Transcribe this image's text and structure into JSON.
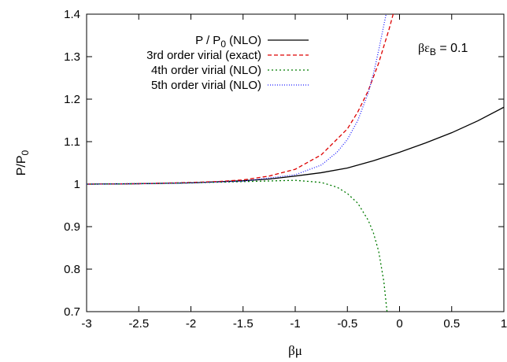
{
  "chart_data": {
    "type": "line",
    "xlabel": "βμ",
    "ylabel": {
      "main": "P/P",
      "sub": "0"
    },
    "xlim": [
      -3,
      1
    ],
    "ylim": [
      0.7,
      1.4
    ],
    "xticks": [
      -3,
      -2.5,
      -2,
      -1.5,
      -1,
      -0.5,
      0,
      0.5,
      1
    ],
    "yticks": [
      0.7,
      0.8,
      0.9,
      1,
      1.1,
      1.2,
      1.3,
      1.4
    ],
    "annotation": {
      "main": "βε",
      "sub": "B",
      "tail": " = 0.1"
    },
    "legend_position": "top-right",
    "grid": false,
    "series": [
      {
        "name": "P / P0 (NLO)",
        "legend": {
          "pre": "P / P",
          "sub": "0",
          "post": " (NLO)"
        },
        "color": "#000000",
        "dash": "",
        "x": [
          -3,
          -2.5,
          -2,
          -1.5,
          -1.25,
          -1,
          -0.75,
          -0.5,
          -0.25,
          0,
          0.25,
          0.5,
          0.75,
          1
        ],
        "y": [
          1.0,
          1.001,
          1.003,
          1.008,
          1.012,
          1.019,
          1.027,
          1.038,
          1.055,
          1.075,
          1.097,
          1.121,
          1.149,
          1.181
        ]
      },
      {
        "name": "3rd order virial (exact)",
        "legend": {
          "pre": "3rd order virial (exact)",
          "sub": "",
          "post": ""
        },
        "color": "#dd0000",
        "dash": "5,3",
        "x": [
          -3,
          -2.5,
          -2,
          -1.75,
          -1.5,
          -1.25,
          -1,
          -0.75,
          -0.5,
          -0.4,
          -0.3,
          -0.2,
          -0.1,
          -0.05
        ],
        "y": [
          1.0,
          1.001,
          1.004,
          1.006,
          1.01,
          1.019,
          1.035,
          1.069,
          1.13,
          1.17,
          1.22,
          1.285,
          1.365,
          1.41
        ]
      },
      {
        "name": "4th order virial (NLO)",
        "legend": {
          "pre": "4th order virial (NLO)",
          "sub": "",
          "post": ""
        },
        "color": "#007a00",
        "dash": "2,3",
        "x": [
          -3,
          -2.5,
          -2,
          -1.5,
          -1,
          -0.75,
          -0.6,
          -0.5,
          -0.4,
          -0.3,
          -0.25,
          -0.2,
          -0.15,
          -0.12
        ],
        "y": [
          1.0,
          1.001,
          1.003,
          1.006,
          1.009,
          1.004,
          0.993,
          0.978,
          0.955,
          0.915,
          0.885,
          0.842,
          0.77,
          0.7
        ]
      },
      {
        "name": "5th order virial (NLO)",
        "legend": {
          "pre": "5th order virial (NLO)",
          "sub": "",
          "post": ""
        },
        "color": "#1a1aff",
        "dash": "1,2",
        "x": [
          -3,
          -2.5,
          -2,
          -1.5,
          -1,
          -0.75,
          -0.6,
          -0.5,
          -0.4,
          -0.3,
          -0.25,
          -0.2,
          -0.15,
          -0.12
        ],
        "y": [
          1.0,
          1.001,
          1.003,
          1.007,
          1.022,
          1.045,
          1.075,
          1.105,
          1.15,
          1.215,
          1.26,
          1.315,
          1.375,
          1.41
        ]
      }
    ]
  }
}
